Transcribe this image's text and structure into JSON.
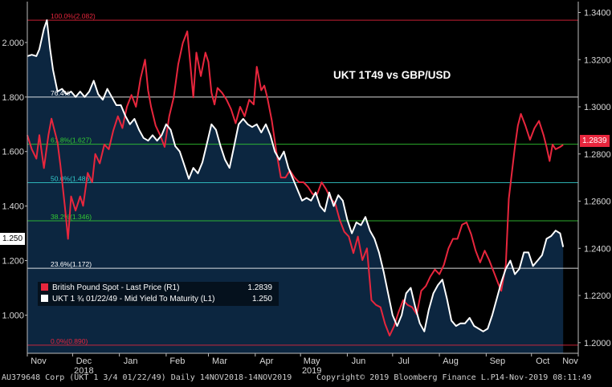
{
  "chart_data": {
    "type": "line",
    "title": "UKT 1T49 vs GBP/USD",
    "series": [
      {
        "name": "British Pound Spot - Last Price (R1)",
        "axis": "right",
        "color": "#e8263d",
        "last_value": "1.2839",
        "points": [
          [
            0,
            1.288
          ],
          [
            3,
            1.282
          ],
          [
            6,
            1.278
          ],
          [
            8,
            1.288
          ],
          [
            11,
            1.274
          ],
          [
            14,
            1.288
          ],
          [
            16,
            1.295
          ],
          [
            20,
            1.285
          ],
          [
            22,
            1.275
          ],
          [
            25,
            1.257
          ],
          [
            27,
            1.244
          ],
          [
            29,
            1.262
          ],
          [
            32,
            1.256
          ],
          [
            35,
            1.262
          ],
          [
            37,
            1.258
          ],
          [
            40,
            1.272
          ],
          [
            43,
            1.268
          ],
          [
            45,
            1.28
          ],
          [
            48,
            1.276
          ],
          [
            51,
            1.284
          ],
          [
            54,
            1.282
          ],
          [
            57,
            1.29
          ],
          [
            60,
            1.296
          ],
          [
            63,
            1.291
          ],
          [
            66,
            1.3
          ],
          [
            69,
            1.305
          ],
          [
            72,
            1.3
          ],
          [
            75,
            1.312
          ],
          [
            78,
            1.32
          ],
          [
            80,
            1.307
          ],
          [
            82,
            1.3
          ],
          [
            85,
            1.292
          ],
          [
            88,
            1.288
          ],
          [
            91,
            1.283
          ],
          [
            94,
            1.296
          ],
          [
            97,
            1.304
          ],
          [
            100,
            1.318
          ],
          [
            103,
            1.327
          ],
          [
            106,
            1.332
          ],
          [
            108,
            1.318
          ],
          [
            110,
            1.304
          ],
          [
            112,
            1.323
          ],
          [
            115,
            1.313
          ],
          [
            118,
            1.323
          ],
          [
            120,
            1.319
          ],
          [
            122,
            1.306
          ],
          [
            124,
            1.301
          ],
          [
            126,
            1.308
          ],
          [
            129,
            1.306
          ],
          [
            132,
            1.303
          ],
          [
            135,
            1.299
          ],
          [
            138,
            1.293
          ],
          [
            141,
            1.3
          ],
          [
            144,
            1.296
          ],
          [
            147,
            1.303
          ],
          [
            150,
            1.301
          ],
          [
            152,
            1.317
          ],
          [
            155,
            1.307
          ],
          [
            157,
            1.309
          ],
          [
            159,
            1.304
          ],
          [
            162,
            1.294
          ],
          [
            165,
            1.281
          ],
          [
            168,
            1.27
          ],
          [
            171,
            1.27
          ],
          [
            174,
            1.273
          ],
          [
            177,
            1.27
          ],
          [
            180,
            1.268
          ],
          [
            183,
            1.268
          ],
          [
            186,
            1.266
          ],
          [
            189,
            1.263
          ],
          [
            192,
            1.263
          ],
          [
            195,
            1.268
          ],
          [
            198,
            1.265
          ],
          [
            201,
            1.261
          ],
          [
            204,
            1.259
          ],
          [
            207,
            1.252
          ],
          [
            210,
            1.247
          ],
          [
            213,
            1.245
          ],
          [
            216,
            1.238
          ],
          [
            219,
            1.245
          ],
          [
            222,
            1.235
          ],
          [
            225,
            1.24
          ],
          [
            228,
            1.218
          ],
          [
            231,
            1.216
          ],
          [
            234,
            1.215
          ],
          [
            237,
            1.208
          ],
          [
            240,
            1.203
          ],
          [
            243,
            1.207
          ],
          [
            246,
            1.213
          ],
          [
            249,
            1.218
          ],
          [
            252,
            1.216
          ],
          [
            255,
            1.215
          ],
          [
            258,
            1.212
          ],
          [
            261,
            1.222
          ],
          [
            264,
            1.224
          ],
          [
            267,
            1.228
          ],
          [
            270,
            1.231
          ],
          [
            273,
            1.229
          ],
          [
            276,
            1.233
          ],
          [
            279,
            1.24
          ],
          [
            282,
            1.244
          ],
          [
            285,
            1.244
          ],
          [
            288,
            1.25
          ],
          [
            291,
            1.251
          ],
          [
            294,
            1.246
          ],
          [
            297,
            1.239
          ],
          [
            300,
            1.234
          ],
          [
            303,
            1.239
          ],
          [
            306,
            1.235
          ],
          [
            309,
            1.23
          ],
          [
            312,
            1.225
          ],
          [
            314,
            1.222
          ],
          [
            317,
            1.233
          ],
          [
            319,
            1.261
          ],
          [
            321,
            1.272
          ],
          [
            323,
            1.283
          ],
          [
            325,
            1.292
          ],
          [
            327,
            1.297
          ],
          [
            330,
            1.292
          ],
          [
            333,
            1.286
          ],
          [
            336,
            1.291
          ],
          [
            339,
            1.294
          ],
          [
            342,
            1.288
          ],
          [
            344,
            1.283
          ],
          [
            346,
            1.277
          ],
          [
            348,
            1.284
          ],
          [
            350,
            1.282
          ],
          [
            353,
            1.283
          ],
          [
            355,
            1.2839
          ]
        ]
      },
      {
        "name": "UKT 1 ¾ 01/22/49 - Mid Yield To Maturity (L1)",
        "axis": "left",
        "color": "#ffffff",
        "last_value": "1.250",
        "points": [
          [
            0,
            1.95
          ],
          [
            3,
            1.955
          ],
          [
            6,
            1.95
          ],
          [
            8,
            1.975
          ],
          [
            11,
            2.05
          ],
          [
            13,
            2.082
          ],
          [
            15,
            1.98
          ],
          [
            17,
            1.9
          ],
          [
            20,
            1.82
          ],
          [
            23,
            1.83
          ],
          [
            26,
            1.81
          ],
          [
            29,
            1.82
          ],
          [
            32,
            1.8
          ],
          [
            35,
            1.82
          ],
          [
            38,
            1.8
          ],
          [
            41,
            1.82
          ],
          [
            44,
            1.86
          ],
          [
            47,
            1.81
          ],
          [
            50,
            1.79
          ],
          [
            53,
            1.83
          ],
          [
            56,
            1.8
          ],
          [
            59,
            1.77
          ],
          [
            62,
            1.77
          ],
          [
            65,
            1.73
          ],
          [
            68,
            1.7
          ],
          [
            71,
            1.72
          ],
          [
            74,
            1.68
          ],
          [
            77,
            1.65
          ],
          [
            80,
            1.64
          ],
          [
            83,
            1.66
          ],
          [
            86,
            1.64
          ],
          [
            89,
            1.66
          ],
          [
            92,
            1.7
          ],
          [
            95,
            1.68
          ],
          [
            98,
            1.62
          ],
          [
            101,
            1.6
          ],
          [
            104,
            1.55
          ],
          [
            107,
            1.5
          ],
          [
            110,
            1.54
          ],
          [
            113,
            1.52
          ],
          [
            116,
            1.56
          ],
          [
            119,
            1.63
          ],
          [
            122,
            1.7
          ],
          [
            125,
            1.68
          ],
          [
            128,
            1.62
          ],
          [
            131,
            1.57
          ],
          [
            134,
            1.54
          ],
          [
            137,
            1.62
          ],
          [
            140,
            1.7
          ],
          [
            143,
            1.72
          ],
          [
            146,
            1.7
          ],
          [
            149,
            1.69
          ],
          [
            152,
            1.7
          ],
          [
            155,
            1.67
          ],
          [
            158,
            1.7
          ],
          [
            161,
            1.66
          ],
          [
            164,
            1.6
          ],
          [
            167,
            1.57
          ],
          [
            170,
            1.6
          ],
          [
            173,
            1.54
          ],
          [
            176,
            1.5
          ],
          [
            179,
            1.46
          ],
          [
            182,
            1.42
          ],
          [
            185,
            1.43
          ],
          [
            188,
            1.42
          ],
          [
            191,
            1.45
          ],
          [
            194,
            1.4
          ],
          [
            197,
            1.38
          ],
          [
            200,
            1.45
          ],
          [
            203,
            1.4
          ],
          [
            206,
            1.44
          ],
          [
            209,
            1.42
          ],
          [
            212,
            1.35
          ],
          [
            215,
            1.3
          ],
          [
            218,
            1.34
          ],
          [
            221,
            1.33
          ],
          [
            224,
            1.36
          ],
          [
            227,
            1.31
          ],
          [
            230,
            1.28
          ],
          [
            233,
            1.23
          ],
          [
            236,
            1.16
          ],
          [
            239,
            1.08
          ],
          [
            242,
            1.0
          ],
          [
            245,
            0.96
          ],
          [
            248,
            1.0
          ],
          [
            251,
            1.08
          ],
          [
            254,
            1.1
          ],
          [
            257,
            1.03
          ],
          [
            260,
            0.97
          ],
          [
            263,
            0.94
          ],
          [
            266,
            1.02
          ],
          [
            269,
            1.08
          ],
          [
            272,
            1.11
          ],
          [
            275,
            1.13
          ],
          [
            278,
            1.06
          ],
          [
            281,
            0.98
          ],
          [
            284,
            0.96
          ],
          [
            287,
            0.97
          ],
          [
            290,
            0.97
          ],
          [
            293,
            0.99
          ],
          [
            296,
            0.96
          ],
          [
            299,
            0.95
          ],
          [
            302,
            0.94
          ],
          [
            305,
            0.95
          ],
          [
            308,
            1.0
          ],
          [
            311,
            1.06
          ],
          [
            314,
            1.12
          ],
          [
            317,
            1.17
          ],
          [
            320,
            1.2
          ],
          [
            323,
            1.15
          ],
          [
            326,
            1.17
          ],
          [
            329,
            1.23
          ],
          [
            332,
            1.23
          ],
          [
            335,
            1.18
          ],
          [
            338,
            1.2
          ],
          [
            341,
            1.22
          ],
          [
            344,
            1.28
          ],
          [
            347,
            1.29
          ],
          [
            350,
            1.31
          ],
          [
            353,
            1.3
          ],
          [
            355,
            1.25
          ]
        ]
      }
    ],
    "x_months": [
      {
        "label": "Nov",
        "day": 0
      },
      {
        "label": "Dec",
        "day": 30
      },
      {
        "label": "Jan",
        "day": 61
      },
      {
        "label": "Feb",
        "day": 92
      },
      {
        "label": "Mar",
        "day": 120
      },
      {
        "label": "Apr",
        "day": 151
      },
      {
        "label": "May",
        "day": 181
      },
      {
        "label": "Jun",
        "day": 212
      },
      {
        "label": "Jul",
        "day": 242
      },
      {
        "label": "Aug",
        "day": 273
      },
      {
        "label": "Sep",
        "day": 304
      },
      {
        "label": "Oct",
        "day": 334
      },
      {
        "label": "Nov",
        "day": 365
      }
    ],
    "x_years": [
      {
        "label": "2018",
        "day": 30
      },
      {
        "label": "2019",
        "day": 181
      }
    ],
    "x_range_days": [
      0,
      365
    ],
    "left_axis": {
      "range": [
        0.86,
        2.15
      ],
      "ticks": [
        "1.000",
        "1.200",
        "1.400",
        "1.600",
        "1.800",
        "2.000"
      ],
      "tick_values": [
        1.0,
        1.2,
        1.4,
        1.6,
        1.8,
        2.0
      ]
    },
    "right_axis": {
      "range": [
        1.1955,
        1.3446
      ],
      "ticks": [
        "1.2000",
        "1.2200",
        "1.2400",
        "1.2600",
        "1.2800",
        "1.3000",
        "1.3200",
        "1.3400"
      ],
      "tick_values": [
        1.2,
        1.22,
        1.24,
        1.26,
        1.28,
        1.3,
        1.32,
        1.34
      ]
    },
    "fibonacci_levels": [
      {
        "label": "100.0%(2.082)",
        "value": 2.082,
        "color": "#e8263d"
      },
      {
        "label": "76.4%",
        "value": 1.8,
        "color": "#ffffff"
      },
      {
        "label": "61.8%(1.627)",
        "value": 1.627,
        "color": "#33cc33"
      },
      {
        "label": "50.0%(1.486)",
        "value": 1.486,
        "color": "#33cccc"
      },
      {
        "label": "38.2%(1.346)",
        "value": 1.346,
        "color": "#33cc33"
      },
      {
        "label": "23.6%(1.172)",
        "value": 1.172,
        "color": "#ffffff"
      },
      {
        "label": "0.0%(0.890)",
        "value": 0.89,
        "color": "#e8263d"
      }
    ],
    "grid": false,
    "legend_position": "bottom-left"
  },
  "footer": {
    "left": "AU379648 Corp (UKT 1 3/4 01/22/49)  Daily 14NOV2018-14NOV2019",
    "center": "Copyright© 2019 Bloomberg Finance L.P.",
    "right": "14-Nov-2019 08:11:49"
  }
}
